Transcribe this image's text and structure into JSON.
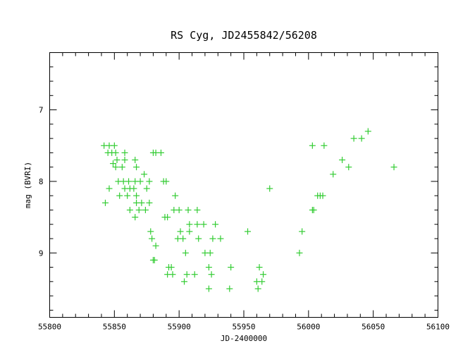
{
  "chart_data": {
    "type": "scatter",
    "title": "RS Cyg, JD2455842/56208",
    "xlabel": "JD-2400000",
    "ylabel": "mag (BVRI)",
    "xlim": [
      55800,
      56100
    ],
    "ylim": [
      9.9,
      6.2
    ],
    "y_inverted": true,
    "x_ticks": [
      55800,
      55850,
      55900,
      55950,
      56000,
      56050,
      56100
    ],
    "y_ticks": [
      7,
      8,
      9
    ],
    "x_tick_labels": [
      "55800",
      "55850",
      "55900",
      "55950",
      "56000",
      "56050",
      "56100"
    ],
    "y_tick_labels": [
      "7",
      "8",
      "9"
    ],
    "marker": "plus",
    "color": "#33cc33",
    "grid": false,
    "legend": false,
    "points": [
      [
        55842,
        7.5
      ],
      [
        55846,
        7.5
      ],
      [
        55850,
        7.5
      ],
      [
        55845,
        7.6
      ],
      [
        55848,
        7.6
      ],
      [
        55851,
        7.6
      ],
      [
        55858,
        7.6
      ],
      [
        55849,
        7.75
      ],
      [
        55852,
        7.7
      ],
      [
        55851,
        7.8
      ],
      [
        55856,
        7.8
      ],
      [
        55858,
        7.7
      ],
      [
        55843,
        8.3
      ],
      [
        55846,
        8.1
      ],
      [
        55853,
        8.0
      ],
      [
        55854,
        8.2
      ],
      [
        55857,
        8.0
      ],
      [
        55858,
        8.1
      ],
      [
        55860,
        8.2
      ],
      [
        55861,
        8.0
      ],
      [
        55862,
        8.1
      ],
      [
        55862,
        8.4
      ],
      [
        55865,
        8.1
      ],
      [
        55866,
        8.0
      ],
      [
        55867,
        8.2
      ],
      [
        55867,
        8.3
      ],
      [
        55866,
        8.5
      ],
      [
        55866,
        7.7
      ],
      [
        55867,
        7.8
      ],
      [
        55869,
        8.4
      ],
      [
        55870,
        8.0
      ],
      [
        55871,
        8.3
      ],
      [
        55873,
        7.9
      ],
      [
        55874,
        8.4
      ],
      [
        55875,
        8.1
      ],
      [
        55877,
        8.0
      ],
      [
        55877,
        8.3
      ],
      [
        55880,
        7.6
      ],
      [
        55882,
        7.6
      ],
      [
        55886,
        7.6
      ],
      [
        55878,
        8.7
      ],
      [
        55879,
        8.8
      ],
      [
        55880,
        9.1
      ],
      [
        55881,
        9.1
      ],
      [
        55882,
        8.9
      ],
      [
        55888,
        8.0
      ],
      [
        55889,
        8.5
      ],
      [
        55890,
        8.0
      ],
      [
        55891,
        8.5
      ],
      [
        55891,
        9.3
      ],
      [
        55892,
        9.2
      ],
      [
        55894,
        9.2
      ],
      [
        55895,
        9.3
      ],
      [
        55896,
        8.4
      ],
      [
        55897,
        8.2
      ],
      [
        55899,
        8.8
      ],
      [
        55900,
        8.4
      ],
      [
        55901,
        8.7
      ],
      [
        55903,
        8.8
      ],
      [
        55904,
        9.4
      ],
      [
        55905,
        9.0
      ],
      [
        55906,
        9.3
      ],
      [
        55907,
        8.4
      ],
      [
        55908,
        8.6
      ],
      [
        55908,
        8.7
      ],
      [
        55912,
        9.3
      ],
      [
        55914,
        8.4
      ],
      [
        55914,
        8.6
      ],
      [
        55915,
        8.8
      ],
      [
        55919,
        8.6
      ],
      [
        55920,
        9.0
      ],
      [
        55923,
        9.2
      ],
      [
        55923,
        9.5
      ],
      [
        55924,
        9.0
      ],
      [
        55925,
        9.3
      ],
      [
        55926,
        8.8
      ],
      [
        55928,
        8.6
      ],
      [
        55932,
        8.8
      ],
      [
        55939,
        9.5
      ],
      [
        55940,
        9.2
      ],
      [
        55953,
        8.7
      ],
      [
        55960,
        9.4
      ],
      [
        55961,
        9.5
      ],
      [
        55962,
        9.2
      ],
      [
        55964,
        9.4
      ],
      [
        55965,
        9.3
      ],
      [
        55970,
        8.1
      ],
      [
        55993,
        9.0
      ],
      [
        55995,
        8.7
      ],
      [
        56003,
        7.5
      ],
      [
        56003,
        8.4
      ],
      [
        56004,
        8.4
      ],
      [
        56007,
        8.2
      ],
      [
        56009,
        8.2
      ],
      [
        56011,
        8.2
      ],
      [
        56012,
        7.5
      ],
      [
        56019,
        7.9
      ],
      [
        56026,
        7.7
      ],
      [
        56031,
        7.8
      ],
      [
        56035,
        7.4
      ],
      [
        56041,
        7.4
      ],
      [
        56046,
        7.3
      ],
      [
        56066,
        7.8
      ]
    ]
  }
}
